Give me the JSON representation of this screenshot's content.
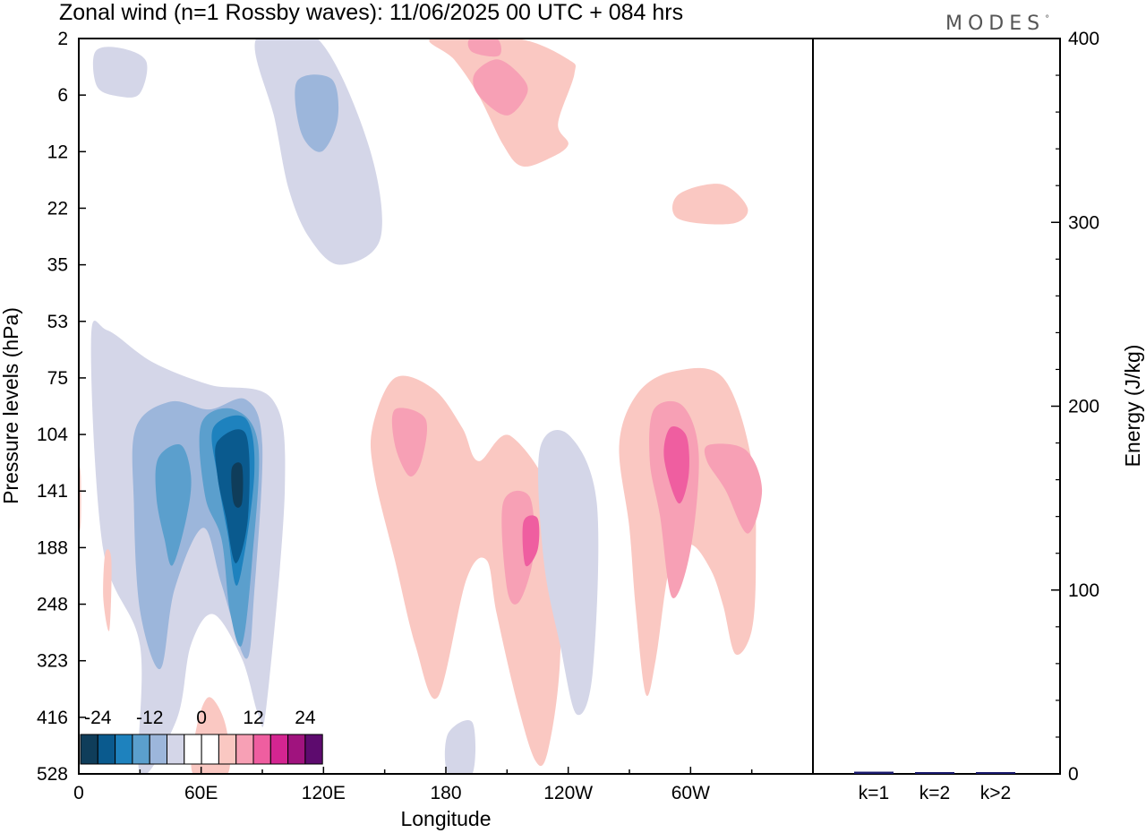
{
  "chart_data": [
    {
      "type": "heatmap",
      "title": "Zonal wind (n=1 Rossby waves):  11/06/2025  00 UTC  + 084 hrs",
      "xlabel": "Longitude",
      "ylabel": "Pressure levels (hPa)",
      "x_ticks": [
        "0",
        "60E",
        "120E",
        "180",
        "120W",
        "60W"
      ],
      "x_tick_degrees": [
        0,
        60,
        120,
        180,
        240,
        300
      ],
      "xlim": [
        0,
        360
      ],
      "y_ticks": [
        "2",
        "6",
        "12",
        "22",
        "35",
        "53",
        "75",
        "104",
        "141",
        "188",
        "248",
        "323",
        "416",
        "528"
      ],
      "y_tick_values": [
        2,
        6,
        12,
        22,
        35,
        53,
        75,
        104,
        141,
        188,
        248,
        323,
        416,
        528
      ],
      "colorbar": {
        "labels": [
          "-24",
          "-12",
          "0",
          "12",
          "24"
        ],
        "label_values": [
          -24,
          -12,
          0,
          12,
          24
        ],
        "colors": [
          "#0f3d5a",
          "#0a5a8e",
          "#1e82be",
          "#5b9fcd",
          "#9cb6db",
          "#d4d6e8",
          "#ffffff",
          "#ffffff",
          "#fac8c2",
          "#f7a0b5",
          "#ef5ea0",
          "#d42591",
          "#a0137e",
          "#5d0b6e"
        ]
      },
      "regions": [
        {
          "level": 1,
          "points": [
            [
              8,
              2.6
            ],
            [
              20,
              2.4
            ],
            [
              33,
              3.1
            ],
            [
              30,
              5.8
            ],
            [
              20,
              6.1
            ],
            [
              9,
              5.1
            ]
          ]
        },
        {
          "level": 1,
          "points": [
            [
              87,
              2
            ],
            [
              117,
              2
            ],
            [
              142,
              11
            ],
            [
              148,
              28
            ],
            [
              128,
              35
            ],
            [
              113,
              28
            ],
            [
              103,
              18
            ],
            [
              96,
              8
            ]
          ]
        },
        {
          "level": 2,
          "points": [
            [
              107,
              4.6
            ],
            [
              124,
              4.4
            ],
            [
              127,
              8
            ],
            [
              119,
              12
            ],
            [
              109,
              9.5
            ]
          ]
        },
        {
          "level": 1,
          "points": [
            [
              6,
              60
            ],
            [
              14,
              56
            ],
            [
              36,
              68
            ],
            [
              64,
              78
            ],
            [
              95,
              85
            ],
            [
              101,
              140
            ],
            [
              92,
              395
            ],
            [
              88,
              410
            ],
            [
              80,
              320
            ],
            [
              66,
              260
            ],
            [
              55,
              300
            ],
            [
              48,
              420
            ],
            [
              30,
              528
            ],
            [
              30,
              300
            ],
            [
              12,
              190
            ]
          ]
        },
        {
          "level": 2,
          "points": [
            [
              28,
              100
            ],
            [
              45,
              86
            ],
            [
              64,
              90
            ],
            [
              82,
              85
            ],
            [
              90,
              110
            ],
            [
              86,
              235
            ],
            [
              82,
              320
            ],
            [
              70,
              225
            ],
            [
              61,
              170
            ],
            [
              47,
              230
            ],
            [
              40,
              335
            ],
            [
              30,
              255
            ],
            [
              27,
              150
            ]
          ]
        },
        {
          "level": 3,
          "points": [
            [
              39,
              118
            ],
            [
              50,
              110
            ],
            [
              55,
              130
            ],
            [
              53,
              160
            ],
            [
              46,
              205
            ],
            [
              42,
              180
            ],
            [
              38,
              145
            ]
          ]
        },
        {
          "level": 3,
          "points": [
            [
              60,
              98
            ],
            [
              76,
              90
            ],
            [
              88,
              110
            ],
            [
              85,
              200
            ],
            [
              80,
              300
            ],
            [
              74,
              255
            ],
            [
              70,
              180
            ],
            [
              62,
              145
            ]
          ]
        },
        {
          "level": 4,
          "points": [
            [
              66,
              100
            ],
            [
              82,
              95
            ],
            [
              86,
              130
            ],
            [
              78,
              225
            ],
            [
              73,
              175
            ],
            [
              68,
              130
            ]
          ]
        },
        {
          "level": 5,
          "points": [
            [
              68,
              108
            ],
            [
              82,
              104
            ],
            [
              83,
              160
            ],
            [
              77,
              203
            ],
            [
              72,
              160
            ],
            [
              68,
              130
            ]
          ]
        },
        {
          "level": 6,
          "points": [
            [
              75,
              125
            ],
            [
              80,
              123
            ],
            [
              80,
              150
            ],
            [
              76,
              150
            ]
          ]
        },
        {
          "level": 1,
          "points": [
            [
              165,
              170
            ],
            [
              177,
              145
            ],
            [
              186,
              166
            ],
            [
              177,
              240
            ],
            [
              167,
              200
            ]
          ]
        },
        {
          "level": 1,
          "points": [
            [
              181,
              446
            ],
            [
              193,
              425
            ],
            [
              193,
              528
            ],
            [
              181,
              528
            ]
          ]
        },
        {
          "level": 8,
          "points": [
            [
              173,
              2
            ],
            [
              215,
              2
            ],
            [
              240,
              3
            ],
            [
              243,
              4
            ],
            [
              235,
              8.5
            ],
            [
              240,
              11
            ],
            [
              230,
              13
            ],
            [
              217,
              14
            ],
            [
              208,
              11
            ],
            [
              196,
              6
            ],
            [
              184,
              3
            ]
          ]
        },
        {
          "level": 9,
          "points": [
            [
              192,
              2
            ],
            [
              205,
              2
            ],
            [
              206,
              2.8
            ],
            [
              193,
              2.6
            ]
          ]
        },
        {
          "level": 9,
          "points": [
            [
              194,
              4
            ],
            [
              205,
              3
            ],
            [
              216,
              4
            ],
            [
              220,
              5.7
            ],
            [
              210,
              7.7
            ],
            [
              196,
              6
            ]
          ]
        },
        {
          "level": 8,
          "points": [
            [
              294,
              19
            ],
            [
              315,
              17
            ],
            [
              328,
              22
            ],
            [
              320,
              25
            ],
            [
              294,
              24
            ]
          ]
        },
        {
          "level": 8,
          "points": [
            [
              144,
              100
            ],
            [
              155,
              75
            ],
            [
              174,
              80
            ],
            [
              188,
              100
            ],
            [
              196,
              120
            ],
            [
              212,
              105
            ],
            [
              235,
              160
            ],
            [
              236,
              320
            ],
            [
              230,
              480
            ],
            [
              224,
              500
            ],
            [
              215,
              390
            ],
            [
              205,
              260
            ],
            [
              200,
              200
            ],
            [
              190,
              220
            ],
            [
              176,
              380
            ],
            [
              165,
              300
            ],
            [
              155,
              200
            ],
            [
              145,
              130
            ]
          ]
        },
        {
          "level": 9,
          "points": [
            [
              155,
              90
            ],
            [
              170,
              95
            ],
            [
              168,
              120
            ],
            [
              162,
              130
            ],
            [
              155,
              110
            ]
          ]
        },
        {
          "level": 9,
          "points": [
            [
              208,
              150
            ],
            [
              221,
              145
            ],
            [
              223,
              195
            ],
            [
              216,
              245
            ],
            [
              210,
              230
            ]
          ]
        },
        {
          "level": 10,
          "points": [
            [
              218,
              165
            ],
            [
              225,
              162
            ],
            [
              225,
              190
            ],
            [
              219,
              205
            ]
          ]
        },
        {
          "level": 8,
          "points": [
            [
              274,
              82
            ],
            [
              292,
              72
            ],
            [
              316,
              75
            ],
            [
              330,
              120
            ],
            [
              332,
              200
            ],
            [
              330,
              280
            ],
            [
              322,
              313
            ],
            [
              316,
              250
            ],
            [
              310,
              210
            ],
            [
              300,
              185
            ],
            [
              290,
              205
            ],
            [
              283,
              320
            ],
            [
              278,
              375
            ],
            [
              273,
              250
            ],
            [
              270,
              170
            ],
            [
              265,
              110
            ]
          ]
        },
        {
          "level": 9,
          "points": [
            [
              282,
              90
            ],
            [
              296,
              88
            ],
            [
              304,
              115
            ],
            [
              300,
              190
            ],
            [
              291,
              240
            ],
            [
              285,
              160
            ],
            [
              280,
              120
            ]
          ]
        },
        {
          "level": 10,
          "points": [
            [
              290,
              100
            ],
            [
              298,
              105
            ],
            [
              299,
              130
            ],
            [
              294,
              150
            ],
            [
              287,
              118
            ]
          ]
        },
        {
          "level": 9,
          "points": [
            [
              309,
              110
            ],
            [
              327,
              113
            ],
            [
              335,
              140
            ],
            [
              328,
              175
            ],
            [
              317,
              140
            ],
            [
              308,
              120
            ]
          ]
        },
        {
          "level": 1,
          "points": [
            [
              226,
              113
            ],
            [
              240,
              104
            ],
            [
              254,
              150
            ],
            [
              252,
              340
            ],
            [
              244,
              410
            ],
            [
              236,
              300
            ],
            [
              228,
              200
            ]
          ]
        },
        {
          "level": 8,
          "points": [
            [
              13,
              193
            ],
            [
              16,
              200
            ],
            [
              15,
              280
            ],
            [
              12,
              240
            ]
          ]
        },
        {
          "level": 8,
          "points": [
            [
              0,
              126
            ],
            [
              1,
              130
            ],
            [
              1,
              165
            ],
            [
              0,
              170
            ]
          ]
        },
        {
          "level": 8,
          "points": [
            [
              56,
              528
            ],
            [
              58,
              430
            ],
            [
              64,
              380
            ],
            [
              72,
              430
            ],
            [
              73,
              528
            ]
          ]
        }
      ]
    },
    {
      "type": "bar",
      "categories": [
        "k=1",
        "k=2",
        "k>2"
      ],
      "values": [
        1.2,
        0.5,
        0.4
      ],
      "ylabel": "Energy (J/kg)",
      "ylim": [
        0,
        400
      ],
      "y_ticks": [
        "0",
        "100",
        "200",
        "300",
        "400"
      ],
      "bar_color": "#1a1a6e"
    }
  ],
  "branding": {
    "text": "MODES",
    "mark": "°"
  }
}
